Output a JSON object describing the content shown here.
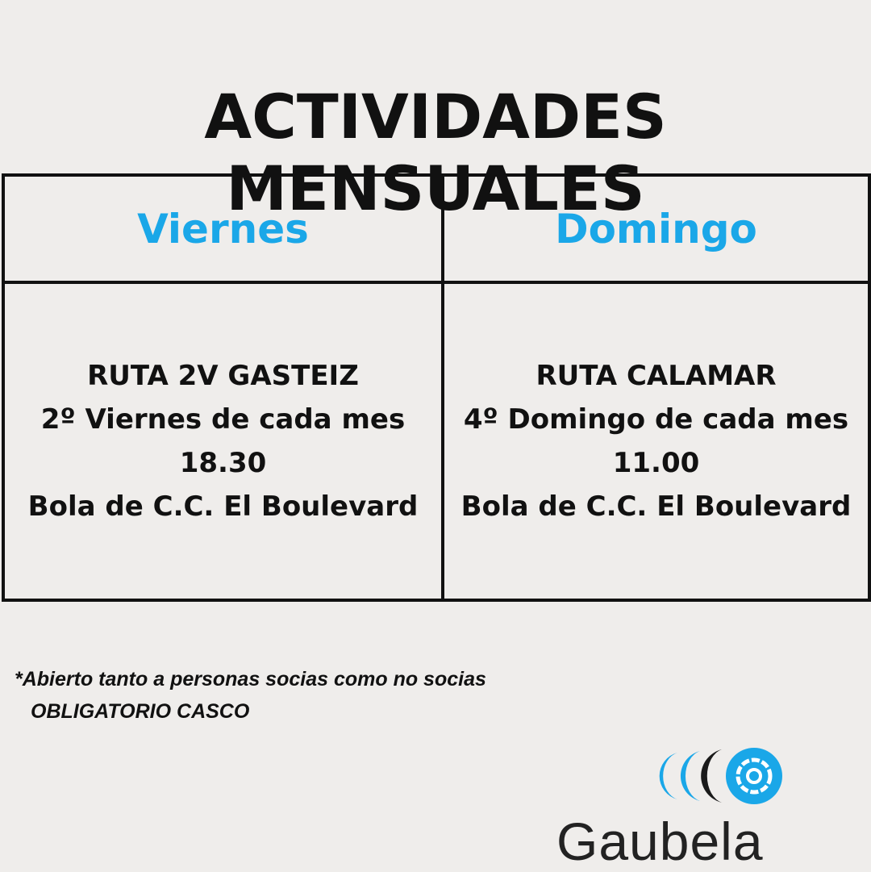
{
  "title": "ACTIVIDADES MENSUALES",
  "table": {
    "columns": [
      {
        "header": "Viernes",
        "lines": [
          "RUTA 2V GASTEIZ",
          "2º Viernes de cada mes",
          "18.30",
          "Bola de C.C. El Boulevard"
        ]
      },
      {
        "header": "Domingo",
        "lines": [
          "RUTA CALAMAR",
          "4º Domingo de cada mes",
          "11.00",
          "Bola de C.C. El Boulevard"
        ]
      }
    ]
  },
  "notes": [
    "*Abierto tanto a personas socias como no socias",
    "OBLIGATORIO CASCO"
  ],
  "logo": {
    "text": "Gaubela",
    "colors": {
      "blue": "#1aa7e8",
      "black": "#1a1a1a"
    }
  },
  "colors": {
    "header": "#1aa7e8",
    "background": "#efedeb"
  }
}
